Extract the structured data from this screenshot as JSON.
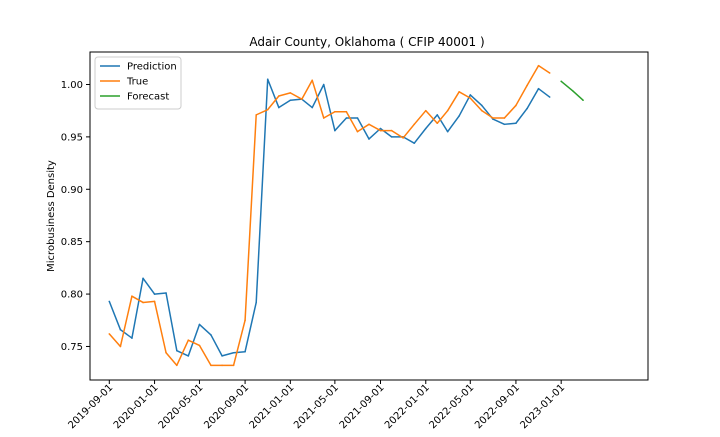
{
  "chart_data": {
    "type": "line",
    "title": "Adair County, Oklahoma ( CFIP 40001 )",
    "xlabel": "",
    "ylabel": "Microbusiness Density",
    "ylim": [
      0.718,
      1.031
    ],
    "xlim": [
      "2019-07-11",
      "2023-08-23"
    ],
    "grid": false,
    "legend_position": "top-left",
    "x_ticks": [
      "2019-09-01",
      "2020-01-01",
      "2020-05-01",
      "2020-09-01",
      "2021-01-01",
      "2021-05-01",
      "2021-09-01",
      "2022-01-01",
      "2022-05-01",
      "2022-09-01",
      "2023-01-01"
    ],
    "y_ticks": [
      0.75,
      0.8,
      0.85,
      0.9,
      0.95,
      1.0
    ],
    "y_tick_labels": [
      "0.75",
      "0.80",
      "0.85",
      "0.90",
      "0.95",
      "1.00"
    ],
    "series": [
      {
        "name": "Prediction",
        "color": "#1f77b4",
        "x": [
          "2019-09-01",
          "2019-10-01",
          "2019-11-01",
          "2019-12-01",
          "2020-01-01",
          "2020-02-01",
          "2020-03-01",
          "2020-04-01",
          "2020-05-01",
          "2020-06-01",
          "2020-07-01",
          "2020-08-01",
          "2020-09-01",
          "2020-10-01",
          "2020-11-01",
          "2020-12-01",
          "2021-01-01",
          "2021-02-01",
          "2021-03-01",
          "2021-04-01",
          "2021-05-01",
          "2021-06-01",
          "2021-07-01",
          "2021-08-01",
          "2021-09-01",
          "2021-10-01",
          "2021-11-01",
          "2021-12-01",
          "2022-01-01",
          "2022-02-01",
          "2022-03-01",
          "2022-04-01",
          "2022-05-01",
          "2022-06-01",
          "2022-07-01",
          "2022-08-01",
          "2022-09-01",
          "2022-10-01",
          "2022-11-01",
          "2022-12-01"
        ],
        "values": [
          0.793,
          0.766,
          0.758,
          0.815,
          0.8,
          0.801,
          0.746,
          0.741,
          0.771,
          0.761,
          0.741,
          0.744,
          0.745,
          0.792,
          1.005,
          0.978,
          0.985,
          0.986,
          0.978,
          1.0,
          0.956,
          0.968,
          0.968,
          0.948,
          0.958,
          0.95,
          0.95,
          0.944,
          0.958,
          0.971,
          0.955,
          0.97,
          0.99,
          0.98,
          0.967,
          0.962,
          0.963,
          0.977,
          0.996,
          0.988
        ]
      },
      {
        "name": "True",
        "color": "#ff7f0e",
        "x": [
          "2019-09-01",
          "2019-10-01",
          "2019-11-01",
          "2019-12-01",
          "2020-01-01",
          "2020-02-01",
          "2020-03-01",
          "2020-04-01",
          "2020-05-01",
          "2020-06-01",
          "2020-07-01",
          "2020-08-01",
          "2020-09-01",
          "2020-10-01",
          "2020-11-01",
          "2020-12-01",
          "2021-01-01",
          "2021-02-01",
          "2021-03-01",
          "2021-04-01",
          "2021-05-01",
          "2021-06-01",
          "2021-07-01",
          "2021-08-01",
          "2021-09-01",
          "2021-10-01",
          "2021-11-01",
          "2021-12-01",
          "2022-01-01",
          "2022-02-01",
          "2022-03-01",
          "2022-04-01",
          "2022-05-01",
          "2022-06-01",
          "2022-07-01",
          "2022-08-01",
          "2022-09-01",
          "2022-10-01",
          "2022-11-01",
          "2022-12-01"
        ],
        "values": [
          0.762,
          0.75,
          0.798,
          0.792,
          0.793,
          0.744,
          0.732,
          0.756,
          0.751,
          0.732,
          0.732,
          0.732,
          0.775,
          0.971,
          0.976,
          0.989,
          0.992,
          0.986,
          1.004,
          0.968,
          0.974,
          0.974,
          0.955,
          0.962,
          0.956,
          0.956,
          0.949,
          0.962,
          0.975,
          0.963,
          0.975,
          0.993,
          0.987,
          0.975,
          0.968,
          0.968,
          0.98,
          0.999,
          1.018,
          1.011
        ]
      },
      {
        "name": "Forecast",
        "color": "#2ca02c",
        "x": [
          "2023-01-01",
          "2023-02-01",
          "2023-03-01"
        ],
        "values": [
          1.003,
          0.994,
          0.985
        ]
      }
    ]
  }
}
